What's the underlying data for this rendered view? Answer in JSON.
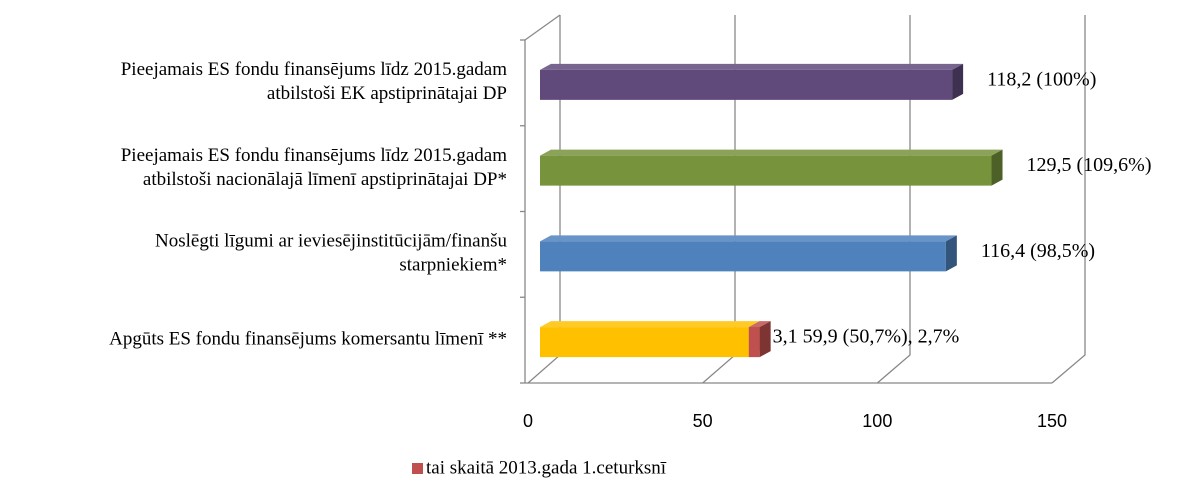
{
  "chart_data": {
    "type": "bar3d_horizontal",
    "categories": [
      [
        "Pieejamais ES fondu finansējums līdz 2015.gadam",
        "atbilstoši EK apstiprinātajai DP"
      ],
      [
        "Pieejamais ES fondu finansējums līdz 2015.gadam",
        "atbilstoši nacionālajā līmenī apstiprinātajai DP*"
      ],
      [
        "Noslēgti līgumi ar ieviesējinstitūcijām/finanšu",
        "starpniekiem*"
      ],
      [
        "Apgūts ES fondu finansējums komersantu līmenī **"
      ]
    ],
    "series": [
      {
        "colors": [
          "#604a7b",
          "#77933c",
          "#4f81bd",
          "#ffc000"
        ],
        "values": [
          118.2,
          129.5,
          116.4,
          59.9
        ],
        "value_labels": [
          "118,2 (100%)",
          "129,5 (109,6%)",
          "116,4 (98,5%)",
          "59,9 (50,7%), 2,7%"
        ]
      },
      {
        "name": "tai skaitā 2013.gada 1.ceturksnī",
        "color": "#c0504d",
        "values": [
          null,
          null,
          null,
          3.1
        ],
        "value_labels": [
          null,
          null,
          null,
          "3,1"
        ]
      }
    ],
    "xlim": [
      0,
      150
    ],
    "xticks": [
      0,
      50,
      100,
      150
    ],
    "legend": "bottom"
  }
}
